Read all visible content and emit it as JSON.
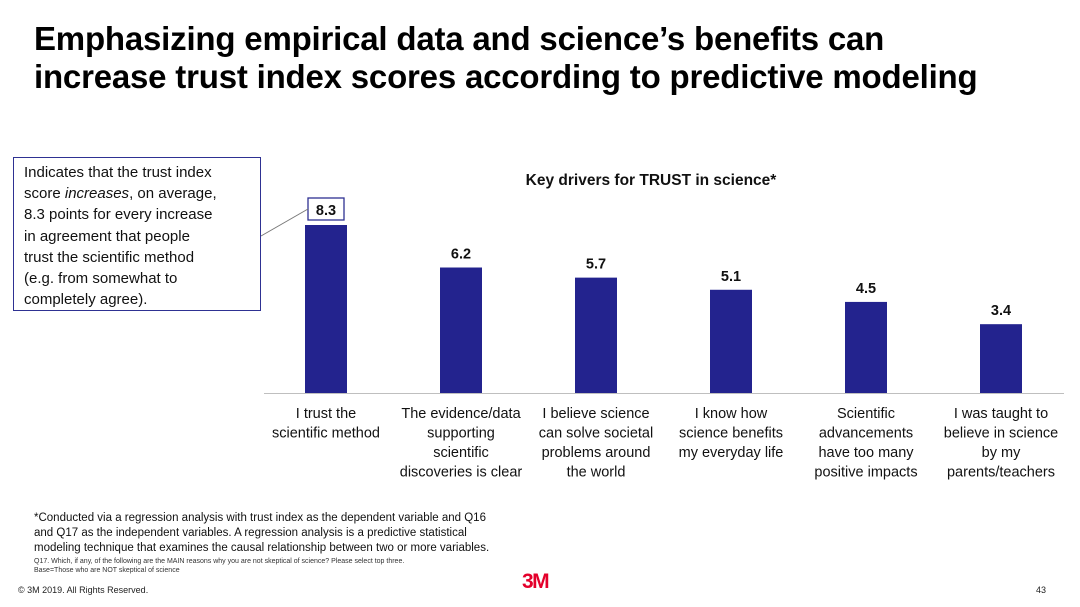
{
  "slide": {
    "title_line1": "Emphasizing empirical data and science’s benefits can",
    "title_line2": "increase trust index scores according to predictive modeling"
  },
  "callout": {
    "line1": "Indicates that the trust index",
    "line2_prefix": "score ",
    "line2_emph": "increases",
    "line2_suffix": ", on average,",
    "line3": "8.3 points for every increase",
    "line4": "in agreement that people",
    "line5": "trust the scientific method",
    "line6": "(e.g. from somewhat to",
    "line7": "completely agree)."
  },
  "chart_data": {
    "type": "bar",
    "title": "Key drivers for TRUST in science*",
    "categories": [
      [
        "I trust the",
        "scientific method"
      ],
      [
        "The evidence/data",
        "supporting",
        "scientific",
        "discoveries is clear"
      ],
      [
        "I believe science",
        "can solve societal",
        "problems around",
        "the world"
      ],
      [
        "I know how",
        "science benefits",
        "my everyday life"
      ],
      [
        "Scientific",
        "advancements",
        "have too many",
        "positive impacts"
      ],
      [
        "I was taught to",
        "believe in science",
        "by my",
        "parents/teachers"
      ]
    ],
    "values": [
      8.3,
      6.2,
      5.7,
      5.1,
      4.5,
      3.4
    ],
    "value_labels": [
      "8.3",
      "6.2",
      "5.7",
      "5.1",
      "4.5",
      "3.4"
    ],
    "highlighted_index": 0,
    "ylim": [
      0,
      8.3
    ],
    "xlabel": "",
    "ylabel": "",
    "grid": false,
    "bar_color": "#23238e",
    "axis_color": "#bfbfbf"
  },
  "footnote": {
    "line1": "*Conducted via a regression analysis with trust index as the dependent variable  and Q16",
    "line2": "and Q17 as the independent variables. A regression analysis is a predictive statistical",
    "line3": "modeling technique that examines the causal relationship between two or more variables.",
    "question": "Q17. Which, if any, of the following are the MAIN reasons why you are not skeptical of science? Please select top three.",
    "base": "Base=Those who are NOT skeptical of science"
  },
  "footer": {
    "copyright": "© 3M 2019.   All Rights Reserved.",
    "logo": "3M",
    "page_number": "43"
  },
  "colors": {
    "accent": "#2e3192",
    "logo_red": "#e4002b"
  }
}
